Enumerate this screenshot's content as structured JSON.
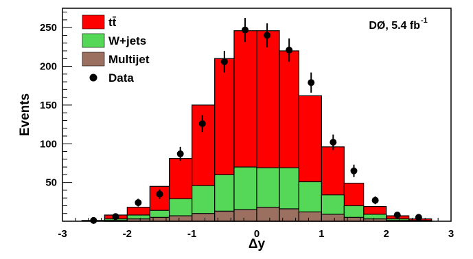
{
  "chart_data": {
    "type": "bar",
    "style": "stacked-histogram",
    "xlabel": "Δy",
    "ylabel": "Events",
    "annotation": {
      "text": "DØ, 5.4 fb",
      "superscript": "-1"
    },
    "xlim": [
      -3,
      3
    ],
    "ylim": [
      0,
      275
    ],
    "x_ticks": [
      {
        "value": -3,
        "label": "-3"
      },
      {
        "value": -2,
        "label": "-2"
      },
      {
        "value": -1,
        "label": "-1"
      },
      {
        "value": 0,
        "label": "0"
      },
      {
        "value": 1,
        "label": "1"
      },
      {
        "value": 2,
        "label": "2"
      },
      {
        "value": 3,
        "label": "3"
      }
    ],
    "y_ticks": [
      {
        "value": 50,
        "label": "50"
      },
      {
        "value": 100,
        "label": "100"
      },
      {
        "value": 150,
        "label": "150"
      },
      {
        "value": 200,
        "label": "200"
      },
      {
        "value": 250,
        "label": "250"
      }
    ],
    "bin_edges": [
      -2.7,
      -2.35,
      -2.0,
      -1.65,
      -1.35,
      -1.0,
      -0.65,
      -0.35,
      0.0,
      0.35,
      0.65,
      1.0,
      1.35,
      1.65,
      2.0,
      2.35,
      2.7
    ],
    "series": [
      {
        "name": "Multijet",
        "color": "#9b7060",
        "values": [
          0,
          1,
          3,
          5,
          7,
          10,
          13,
          15,
          18,
          16,
          12,
          9,
          5,
          3,
          1,
          0
        ]
      },
      {
        "name": "W+jets",
        "color": "#55d858",
        "values": [
          0,
          2,
          5,
          9,
          22,
          36,
          47,
          55,
          51,
          53,
          39,
          25,
          15,
          6,
          2,
          1
        ]
      },
      {
        "name": "tt̄",
        "color": "#ff0000",
        "values": [
          1,
          5,
          10,
          31,
          52,
          104,
          150,
          176,
          177,
          151,
          111,
          62,
          29,
          10,
          4,
          2
        ]
      }
    ],
    "data_points": {
      "name": "Data",
      "x": [
        -2.52,
        -2.18,
        -1.83,
        -1.5,
        -1.18,
        -0.84,
        -0.5,
        -0.18,
        0.16,
        0.5,
        0.84,
        1.18,
        1.5,
        1.83,
        2.17,
        2.5
      ],
      "y": [
        1,
        6,
        24,
        35,
        87,
        126,
        206,
        247,
        240,
        221,
        179,
        102,
        65,
        27,
        8,
        5
      ],
      "err": [
        1,
        2.5,
        5,
        6,
        9,
        11,
        14,
        15.5,
        15.5,
        15,
        13,
        10,
        8,
        5,
        3,
        2
      ]
    },
    "legend": {
      "position": "top-left",
      "entries": [
        {
          "label": "tt̄",
          "color": "#ff0000",
          "marker": "box"
        },
        {
          "label": "W+jets",
          "color": "#55d858",
          "marker": "box"
        },
        {
          "label": "Multijet",
          "color": "#9b7060",
          "marker": "box"
        },
        {
          "label": "Data",
          "color": "#000000",
          "marker": "dot"
        }
      ]
    }
  }
}
